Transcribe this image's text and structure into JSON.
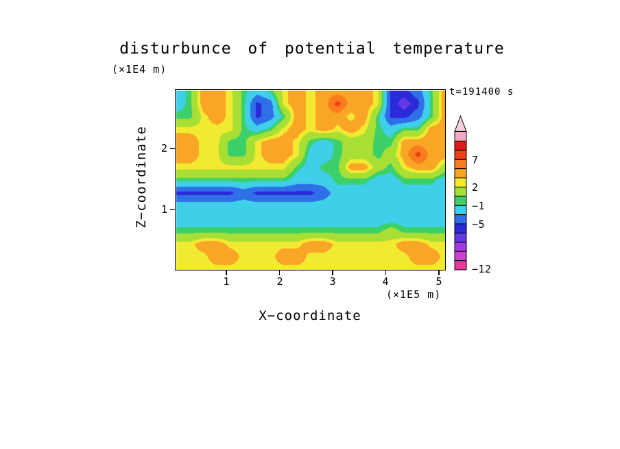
{
  "title": "disturbunce of potential temperature",
  "time_label": "t=191400 s",
  "axes": {
    "x_label": "X−coordinate",
    "x_units": "(×1E5 m)",
    "x_ticks": [
      "1",
      "2",
      "3",
      "4",
      "5"
    ],
    "z_label": "Z−coordinate",
    "z_units": "(×1E4 m)",
    "z_ticks": [
      "2",
      "1"
    ]
  },
  "colorbar": {
    "labels": [
      "7",
      "2",
      "−1",
      "−5",
      "−12"
    ],
    "cap_color": "#f4a8c4",
    "tip_color": "#f6cfdc"
  },
  "chart_data": {
    "type": "heatmap",
    "title": "disturbunce of potential temperature",
    "xlabel": "X−coordinate (×1E5 m)",
    "ylabel": "Z−coordinate (×1E4 m)",
    "annotation": "t=191400 s",
    "x_range": [
      0,
      5.13
    ],
    "z_range": [
      0,
      2.97
    ],
    "x_tick_values": [
      1,
      2,
      3,
      4,
      5
    ],
    "z_tick_values": [
      1,
      2
    ],
    "levels": [
      -12,
      -10,
      -8,
      -7,
      -6,
      -5,
      -3,
      -1,
      0,
      2,
      3,
      5,
      7,
      9,
      11
    ],
    "colors": [
      "#e6399b",
      "#cf3ecf",
      "#a03ce0",
      "#6438e8",
      "#2a2ad8",
      "#2f6fe8",
      "#40cfe8",
      "#3bd06a",
      "#a8df35",
      "#f2ea30",
      "#f9a526",
      "#f97d1e",
      "#f04018",
      "#e01818"
    ],
    "colorbar_labeled_boundaries": {
      "7": 12,
      "2": 9,
      "−1": 7,
      "−5": 5,
      "−12": 0
    },
    "grid_orientation": "rows listed top (z=2.97) to bottom (z=0); cols left (x=0) to right (x=5.13); values are potential-temperature disturbance estimated from fill colors",
    "grid": [
      [
        -2,
        -0.5,
        4,
        4,
        2.5,
        -0.5,
        -2,
        -0.5,
        2.5,
        4,
        2.5,
        4,
        4,
        4,
        4,
        2.5,
        -5.5,
        -5.5,
        -4,
        -0.5,
        4
      ],
      [
        -2,
        -0.5,
        4,
        4,
        2.5,
        -0.5,
        -5.5,
        -4,
        2.5,
        4,
        2.5,
        4,
        8,
        4,
        4,
        2.5,
        -5.5,
        -6.5,
        -5.5,
        -0.5,
        4
      ],
      [
        -0.5,
        -0.5,
        2.5,
        4,
        2.5,
        -0.5,
        -5.5,
        -4,
        -0.5,
        4,
        2.5,
        4,
        4,
        2.5,
        4,
        -0.5,
        -5.5,
        -5.5,
        -4,
        -0.5,
        4
      ],
      [
        2.5,
        2.5,
        2.5,
        2.5,
        2.5,
        -0.5,
        -2,
        -0.5,
        2.5,
        4,
        2.5,
        4,
        2.5,
        4,
        2.5,
        -0.5,
        -2,
        -0.5,
        -0.5,
        4,
        4
      ],
      [
        4,
        4,
        2.5,
        2.5,
        -0.5,
        -0.5,
        2.5,
        4,
        4,
        2.5,
        -0.5,
        -2,
        -0.5,
        1,
        1,
        -0.5,
        -0.5,
        4,
        4,
        4,
        4
      ],
      [
        4,
        4,
        2.5,
        2.5,
        -0.5,
        -0.5,
        2.5,
        4,
        4,
        2.5,
        -2,
        -2,
        -0.5,
        1,
        1,
        -0.5,
        1,
        4,
        8,
        4,
        4
      ],
      [
        2.5,
        2.5,
        2.5,
        2.5,
        2.5,
        2.5,
        2.5,
        2.5,
        2.5,
        -0.5,
        -2,
        -0.5,
        -0.5,
        4,
        4,
        1,
        -0.5,
        2.5,
        4,
        4,
        1
      ],
      [
        -0.5,
        -0.5,
        -0.5,
        -0.5,
        -0.5,
        -0.5,
        -0.5,
        -0.5,
        -0.5,
        -2,
        -2,
        -2,
        -0.5,
        -0.5,
        -0.5,
        -2,
        -2,
        -0.5,
        -0.5,
        -0.5,
        -2
      ],
      [
        -5.5,
        -5.5,
        -5.5,
        -5.5,
        -5.5,
        -4,
        -5.5,
        -5.5,
        -5.5,
        -5.5,
        -5.5,
        -4,
        -2,
        -2,
        -2,
        -2,
        -2,
        -2,
        -2,
        -2,
        -2
      ],
      [
        -2,
        -2,
        -2,
        -2,
        -2,
        -2,
        -2,
        -2,
        -2,
        -2,
        -2,
        -2,
        -2,
        -2,
        -2,
        -2,
        -2,
        -2,
        -2,
        -2,
        -2
      ],
      [
        -2,
        -2,
        -2,
        -2,
        -2,
        -2,
        -2,
        -2,
        -2,
        -2,
        -2,
        -2,
        -2,
        -2,
        -2,
        -2,
        -2,
        -2,
        -2,
        -2,
        -2
      ],
      [
        -0.5,
        -0.5,
        -0.5,
        -0.5,
        -0.5,
        -0.5,
        -0.5,
        -0.5,
        -0.5,
        -0.5,
        -0.5,
        -0.5,
        -0.5,
        -0.5,
        -0.5,
        -0.5,
        1,
        -0.5,
        -0.5,
        -0.5,
        -0.5
      ],
      [
        2.5,
        2.5,
        4,
        4,
        2.5,
        2.5,
        2.5,
        2.5,
        2.5,
        2.5,
        4,
        4,
        2.5,
        2.5,
        2.5,
        2.5,
        2.5,
        4,
        4,
        2.5,
        2.5
      ],
      [
        2.5,
        2.5,
        2.5,
        4,
        4,
        2.5,
        2.5,
        2.5,
        4,
        4,
        2.5,
        2.5,
        2.5,
        2.5,
        2.5,
        2.5,
        2.5,
        2.5,
        4,
        4,
        2.5
      ],
      [
        2.5,
        2.5,
        2.5,
        2.5,
        2.5,
        2.5,
        2.5,
        2.5,
        2.5,
        2.5,
        2.5,
        2.5,
        2.5,
        2.5,
        2.5,
        2.5,
        2.5,
        2.5,
        2.5,
        2.5,
        2.5
      ]
    ]
  }
}
